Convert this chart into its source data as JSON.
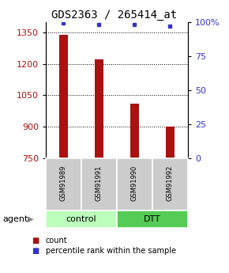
{
  "title": "GDS2363 / 265414_at",
  "samples": [
    "GSM91989",
    "GSM91991",
    "GSM91990",
    "GSM91992"
  ],
  "bar_values": [
    1340,
    1220,
    1010,
    900
  ],
  "percentile_values": [
    99,
    98,
    98,
    97
  ],
  "bar_color": "#aa1111",
  "dot_color": "#3333cc",
  "ylim_left": [
    750,
    1400
  ],
  "ylim_right": [
    0,
    100
  ],
  "yticks_left": [
    750,
    900,
    1050,
    1200,
    1350
  ],
  "yticks_right": [
    0,
    25,
    50,
    75,
    100
  ],
  "grid_values": [
    900,
    1050,
    1200,
    1350
  ],
  "groups": [
    {
      "label": "control",
      "color": "#bbffbb",
      "span": [
        0,
        2
      ]
    },
    {
      "label": "DTT",
      "color": "#55cc55",
      "span": [
        2,
        4
      ]
    }
  ],
  "agent_label": "agent",
  "legend": [
    {
      "label": "count",
      "color": "#aa1111"
    },
    {
      "label": "percentile rank within the sample",
      "color": "#3333cc"
    }
  ],
  "bar_width": 0.25,
  "background_color": "#ffffff",
  "title_fontsize": 10,
  "tick_fontsize": 8,
  "sample_fontsize": 6,
  "group_fontsize": 8,
  "legend_fontsize": 7
}
